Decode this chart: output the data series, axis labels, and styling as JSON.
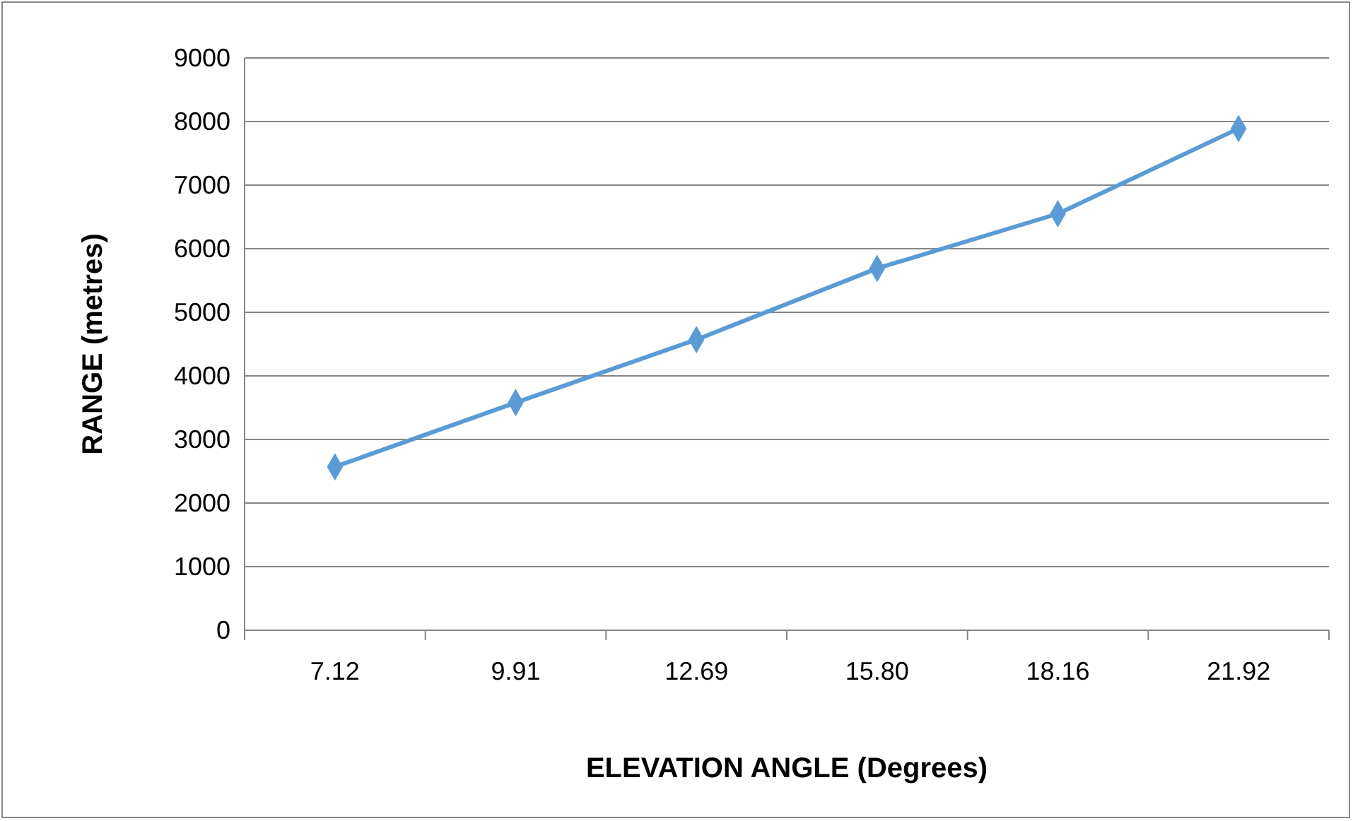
{
  "chart_data": {
    "type": "line",
    "xlabel": "ELEVATION ANGLE (Degrees)",
    "ylabel": "RANGE (metres)",
    "categories": [
      "7.12",
      "9.91",
      "12.69",
      "15.80",
      "18.16",
      "21.92"
    ],
    "series": [
      {
        "color": "#5b9bd5",
        "values": [
          2570,
          3580,
          4570,
          5690,
          6550,
          7890
        ]
      }
    ],
    "ylim": [
      0,
      9000
    ],
    "yticks": [
      0,
      1000,
      2000,
      3000,
      4000,
      5000,
      6000,
      7000,
      8000,
      9000
    ],
    "grid": "y",
    "marker": "diamond",
    "line_style": "solid"
  }
}
